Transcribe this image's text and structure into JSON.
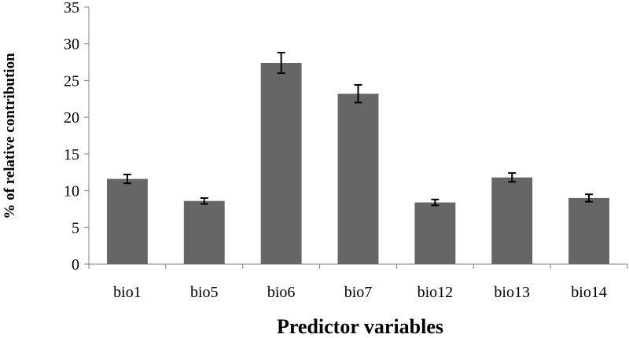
{
  "chart_data": {
    "type": "bar",
    "title": "",
    "xlabel": "Predictor variables",
    "ylabel": "% of relative contribution",
    "categories": [
      "bio1",
      "bio5",
      "bio6",
      "bio7",
      "bio12",
      "bio13",
      "bio14"
    ],
    "values": [
      11.6,
      8.6,
      27.4,
      23.2,
      8.4,
      11.8,
      9.0
    ],
    "error": [
      0.6,
      0.4,
      1.4,
      1.2,
      0.4,
      0.6,
      0.5
    ],
    "ylim": [
      0,
      35
    ],
    "yticks": [
      0,
      5,
      10,
      15,
      20,
      25,
      30,
      35
    ],
    "grid": false,
    "legend": false,
    "bar_color": "#666666"
  }
}
